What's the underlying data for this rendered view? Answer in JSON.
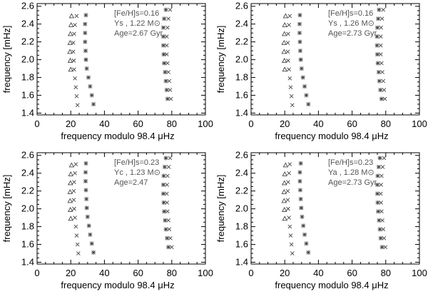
{
  "chart_data": [
    {
      "type": "scatter",
      "xlabel": "frequency modulo 98.4 μHz",
      "ylabel": "frequency [mHz]",
      "xlim": [
        0,
        100
      ],
      "ylim": [
        1.38,
        2.63
      ],
      "xticks": [
        0,
        20,
        40,
        60,
        80,
        100
      ],
      "yticks": [
        1.4,
        1.6,
        1.8,
        2.0,
        2.2,
        2.4,
        2.6
      ],
      "annotations": [
        "[Fe/H]s=0.16",
        "Ys , 1.22 M⊙",
        "Age=2.67 Gyr"
      ],
      "series": [
        {
          "marker": "triangle",
          "points": [
            [
              20.5,
              2.49
            ],
            [
              20.2,
              2.39
            ],
            [
              19.8,
              2.29
            ],
            [
              19.6,
              2.19
            ],
            [
              19.5,
              2.09
            ],
            [
              19.7,
              1.99
            ],
            [
              20.0,
              1.89
            ]
          ]
        },
        {
          "marker": "x",
          "points": [
            [
              23.5,
              2.49
            ],
            [
              22.5,
              2.39
            ],
            [
              22.0,
              2.29
            ],
            [
              21.5,
              2.19
            ],
            [
              21.5,
              2.09
            ],
            [
              21.8,
              1.99
            ],
            [
              22.0,
              1.89
            ],
            [
              22.5,
              1.79
            ],
            [
              23.0,
              1.69
            ],
            [
              23.5,
              1.59
            ],
            [
              24.0,
              1.49
            ]
          ]
        },
        {
          "marker": "asterisk",
          "points": [
            [
              29.0,
              2.5
            ],
            [
              28.5,
              2.4
            ],
            [
              28.5,
              2.3
            ],
            [
              28.5,
              2.2
            ],
            [
              28.8,
              2.1
            ],
            [
              29.0,
              2.0
            ],
            [
              29.5,
              1.9
            ],
            [
              30.5,
              1.8
            ],
            [
              31.5,
              1.7
            ],
            [
              32.5,
              1.6
            ],
            [
              33.5,
              1.5
            ]
          ]
        },
        {
          "marker": "asterisk",
          "points": [
            [
              76.5,
              2.56
            ],
            [
              75.5,
              2.46
            ],
            [
              75.0,
              2.36
            ],
            [
              75.0,
              2.26
            ],
            [
              75.0,
              2.16
            ],
            [
              75.2,
              2.06
            ],
            [
              75.5,
              1.96
            ],
            [
              76.0,
              1.86
            ],
            [
              76.5,
              1.76
            ],
            [
              77.0,
              1.66
            ],
            [
              77.5,
              1.56
            ]
          ]
        },
        {
          "marker": "x",
          "points": [
            [
              79.0,
              2.56
            ],
            [
              78.0,
              2.46
            ],
            [
              77.5,
              2.36
            ],
            [
              77.0,
              2.26
            ],
            [
              77.0,
              2.16
            ],
            [
              77.0,
              2.06
            ],
            [
              77.5,
              1.96
            ],
            [
              78.0,
              1.86
            ],
            [
              78.5,
              1.76
            ],
            [
              79.0,
              1.66
            ],
            [
              79.5,
              1.56
            ]
          ]
        }
      ]
    },
    {
      "type": "scatter",
      "xlabel": "frequency modulo 98.4 μHz",
      "ylabel": "frequency [mHz]",
      "xlim": [
        0,
        100
      ],
      "ylim": [
        1.38,
        2.63
      ],
      "xticks": [
        0,
        20,
        40,
        60,
        80,
        100
      ],
      "yticks": [
        1.4,
        1.6,
        1.8,
        2.0,
        2.2,
        2.4,
        2.6
      ],
      "annotations": [
        "[Fe/H]s=0.16",
        "Ys , 1.26 M⊙",
        "Age=2.73 Gyr"
      ],
      "series": [
        {
          "marker": "triangle",
          "points": [
            [
              20.5,
              2.49
            ],
            [
              20.0,
              2.39
            ],
            [
              19.8,
              2.29
            ],
            [
              19.6,
              2.19
            ],
            [
              19.6,
              2.09
            ],
            [
              19.8,
              1.99
            ],
            [
              20.0,
              1.89
            ]
          ]
        },
        {
          "marker": "x",
          "points": [
            [
              23.0,
              2.49
            ],
            [
              22.5,
              2.39
            ],
            [
              22.0,
              2.29
            ],
            [
              21.8,
              2.19
            ],
            [
              21.8,
              2.09
            ],
            [
              22.0,
              1.99
            ],
            [
              22.5,
              1.89
            ],
            [
              23.0,
              1.79
            ],
            [
              23.5,
              1.69
            ],
            [
              24.0,
              1.59
            ],
            [
              24.5,
              1.49
            ]
          ]
        },
        {
          "marker": "asterisk",
          "points": [
            [
              29.0,
              2.5
            ],
            [
              28.8,
              2.4
            ],
            [
              28.8,
              2.3
            ],
            [
              29.0,
              2.2
            ],
            [
              29.2,
              2.1
            ],
            [
              29.5,
              2.0
            ],
            [
              30.0,
              1.9
            ],
            [
              30.8,
              1.8
            ],
            [
              31.8,
              1.7
            ],
            [
              32.8,
              1.6
            ],
            [
              34.0,
              1.5
            ]
          ]
        },
        {
          "marker": "asterisk",
          "points": [
            [
              76.0,
              2.56
            ],
            [
              75.5,
              2.46
            ],
            [
              75.0,
              2.36
            ],
            [
              74.8,
              2.26
            ],
            [
              74.8,
              2.16
            ],
            [
              75.0,
              2.06
            ],
            [
              75.3,
              1.96
            ],
            [
              75.8,
              1.86
            ],
            [
              76.2,
              1.76
            ],
            [
              76.8,
              1.66
            ],
            [
              77.5,
              1.56
            ]
          ]
        },
        {
          "marker": "x",
          "points": [
            [
              78.5,
              2.56
            ],
            [
              77.8,
              2.46
            ],
            [
              77.2,
              2.36
            ],
            [
              77.0,
              2.26
            ],
            [
              77.0,
              2.16
            ],
            [
              77.0,
              2.06
            ],
            [
              77.5,
              1.96
            ],
            [
              78.0,
              1.86
            ],
            [
              78.5,
              1.76
            ],
            [
              79.0,
              1.66
            ],
            [
              79.5,
              1.56
            ]
          ]
        }
      ]
    },
    {
      "type": "scatter",
      "xlabel": "frequency modulo 98.4 μHz",
      "ylabel": "frequency [mHz]",
      "xlim": [
        0,
        100
      ],
      "ylim": [
        1.38,
        2.63
      ],
      "xticks": [
        0,
        20,
        40,
        60,
        80,
        100
      ],
      "yticks": [
        1.4,
        1.6,
        1.8,
        2.0,
        2.2,
        2.4,
        2.6
      ],
      "annotations": [
        "[Fe/H]s=0.23",
        "Yc , 1.23 M⊙",
        "Age=2.47"
      ],
      "series": [
        {
          "marker": "triangle",
          "points": [
            [
              20.5,
              2.49
            ],
            [
              20.0,
              2.39
            ],
            [
              19.8,
              2.29
            ],
            [
              19.6,
              2.19
            ],
            [
              19.6,
              2.09
            ],
            [
              19.8,
              1.99
            ],
            [
              20.0,
              1.89
            ]
          ]
        },
        {
          "marker": "x",
          "points": [
            [
              23.0,
              2.5
            ],
            [
              22.5,
              2.4
            ],
            [
              22.0,
              2.3
            ],
            [
              21.8,
              2.2
            ],
            [
              21.8,
              2.1
            ],
            [
              22.0,
              2.0
            ],
            [
              22.5,
              1.9
            ],
            [
              23.0,
              1.8
            ],
            [
              23.5,
              1.7
            ],
            [
              24.0,
              1.6
            ],
            [
              24.5,
              1.5
            ]
          ]
        },
        {
          "marker": "asterisk",
          "points": [
            [
              29.0,
              2.51
            ],
            [
              28.8,
              2.41
            ],
            [
              28.8,
              2.31
            ],
            [
              29.0,
              2.21
            ],
            [
              29.3,
              2.11
            ],
            [
              29.5,
              2.01
            ],
            [
              30.0,
              1.91
            ],
            [
              30.8,
              1.81
            ],
            [
              31.5,
              1.71
            ],
            [
              32.5,
              1.61
            ],
            [
              33.5,
              1.51
            ]
          ]
        },
        {
          "marker": "asterisk",
          "points": [
            [
              76.5,
              2.57
            ],
            [
              75.8,
              2.47
            ],
            [
              75.2,
              2.37
            ],
            [
              75.0,
              2.27
            ],
            [
              75.0,
              2.17
            ],
            [
              75.2,
              2.07
            ],
            [
              75.5,
              1.97
            ],
            [
              76.0,
              1.87
            ],
            [
              76.5,
              1.77
            ],
            [
              77.2,
              1.67
            ],
            [
              78.0,
              1.57
            ]
          ]
        },
        {
          "marker": "x",
          "points": [
            [
              79.0,
              2.57
            ],
            [
              78.2,
              2.47
            ],
            [
              77.5,
              2.37
            ],
            [
              77.2,
              2.27
            ],
            [
              77.0,
              2.17
            ],
            [
              77.2,
              2.07
            ],
            [
              77.5,
              1.97
            ],
            [
              78.0,
              1.87
            ],
            [
              78.5,
              1.77
            ],
            [
              79.2,
              1.67
            ],
            [
              80.0,
              1.57
            ]
          ]
        }
      ]
    },
    {
      "type": "scatter",
      "xlabel": "frequency modulo 98.4 μHz",
      "ylabel": "frequency [mHz]",
      "xlim": [
        0,
        100
      ],
      "ylim": [
        1.38,
        2.63
      ],
      "xticks": [
        0,
        20,
        40,
        60,
        80,
        100
      ],
      "yticks": [
        1.4,
        1.6,
        1.8,
        2.0,
        2.2,
        2.4,
        2.6
      ],
      "annotations": [
        "[Fe/H]s=0.23",
        "Ya , 1.28 M⊙",
        "Age=2.73 Gyr"
      ],
      "series": [
        {
          "marker": "triangle",
          "points": [
            [
              20.5,
              2.49
            ],
            [
              20.0,
              2.39
            ],
            [
              19.8,
              2.29
            ],
            [
              19.6,
              2.19
            ],
            [
              19.6,
              2.09
            ],
            [
              19.8,
              1.99
            ],
            [
              20.0,
              1.89
            ]
          ]
        },
        {
          "marker": "x",
          "points": [
            [
              23.0,
              2.5
            ],
            [
              22.5,
              2.4
            ],
            [
              22.0,
              2.3
            ],
            [
              21.8,
              2.2
            ],
            [
              21.8,
              2.1
            ],
            [
              22.0,
              2.0
            ],
            [
              22.5,
              1.9
            ],
            [
              23.0,
              1.8
            ],
            [
              23.5,
              1.7
            ],
            [
              24.0,
              1.6
            ],
            [
              24.5,
              1.5
            ]
          ]
        },
        {
          "marker": "asterisk",
          "points": [
            [
              29.5,
              2.51
            ],
            [
              29.0,
              2.41
            ],
            [
              29.0,
              2.31
            ],
            [
              29.2,
              2.21
            ],
            [
              29.5,
              2.11
            ],
            [
              29.8,
              2.01
            ],
            [
              30.3,
              1.91
            ],
            [
              31.0,
              1.81
            ],
            [
              31.8,
              1.71
            ],
            [
              32.8,
              1.61
            ],
            [
              34.0,
              1.51
            ]
          ]
        },
        {
          "marker": "asterisk",
          "points": [
            [
              76.5,
              2.57
            ],
            [
              75.8,
              2.47
            ],
            [
              75.2,
              2.37
            ],
            [
              75.0,
              2.27
            ],
            [
              75.0,
              2.17
            ],
            [
              75.2,
              2.07
            ],
            [
              75.5,
              1.97
            ],
            [
              76.0,
              1.87
            ],
            [
              76.5,
              1.77
            ],
            [
              77.0,
              1.67
            ],
            [
              77.8,
              1.57
            ]
          ]
        },
        {
          "marker": "x",
          "points": [
            [
              79.0,
              2.57
            ],
            [
              78.2,
              2.47
            ],
            [
              77.5,
              2.37
            ],
            [
              77.2,
              2.27
            ],
            [
              77.0,
              2.17
            ],
            [
              77.2,
              2.07
            ],
            [
              77.5,
              1.97
            ],
            [
              78.0,
              1.87
            ],
            [
              78.5,
              1.77
            ],
            [
              79.0,
              1.67
            ],
            [
              79.8,
              1.57
            ]
          ]
        }
      ]
    }
  ]
}
